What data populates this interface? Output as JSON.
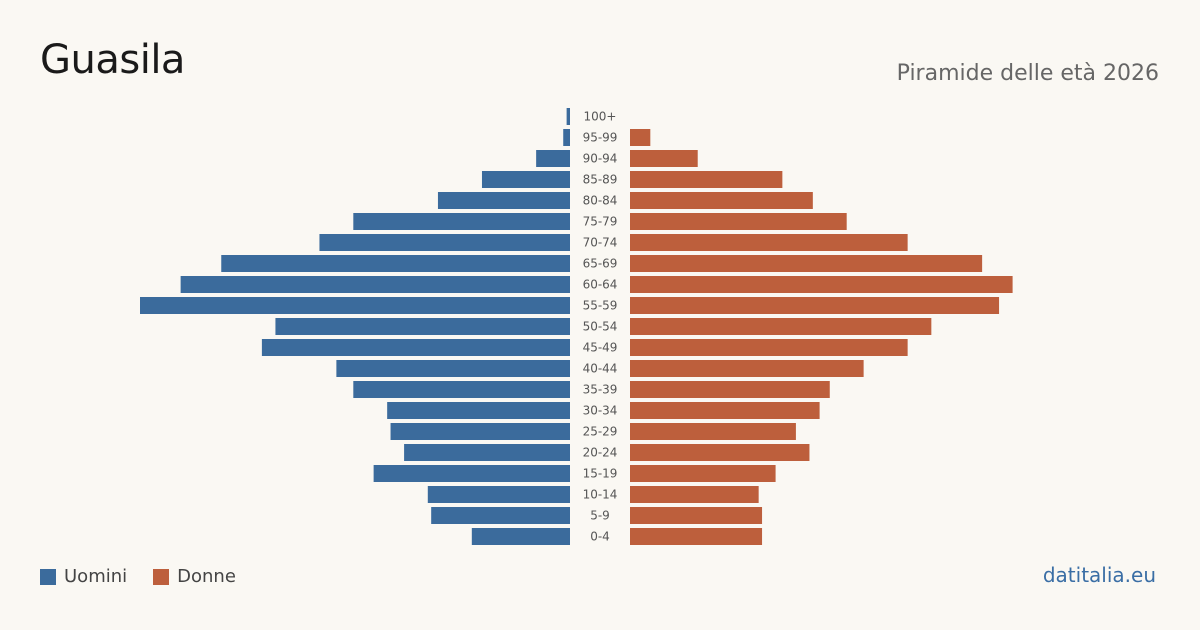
{
  "header": {
    "title": "Guasila",
    "subtitle": "Piramide delle età 2026"
  },
  "legend": {
    "men_label": "Uomini",
    "women_label": "Donne"
  },
  "footer": {
    "brand": "datitalia.eu"
  },
  "colors": {
    "men": "#3b6b9c",
    "women": "#bd5f3c",
    "age_label": "#555555"
  },
  "chart_data": {
    "type": "bar",
    "orientation": "horizontal-pyramid",
    "categories": [
      "100+",
      "95-99",
      "90-94",
      "85-89",
      "80-84",
      "75-79",
      "70-74",
      "65-69",
      "60-64",
      "55-59",
      "50-54",
      "45-49",
      "40-44",
      "35-39",
      "30-34",
      "25-29",
      "20-24",
      "15-19",
      "10-14",
      "5-9",
      "0-4"
    ],
    "series": [
      {
        "name": "Uomini",
        "values": [
          1,
          2,
          10,
          26,
          39,
          64,
          74,
          103,
          115,
          127,
          87,
          91,
          69,
          64,
          54,
          53,
          49,
          58,
          42,
          41,
          29
        ]
      },
      {
        "name": "Donne",
        "values": [
          0,
          6,
          20,
          45,
          54,
          64,
          82,
          104,
          113,
          109,
          89,
          82,
          69,
          59,
          56,
          49,
          53,
          43,
          38,
          39,
          39
        ]
      }
    ],
    "xlim": [
      0,
      127
    ],
    "grid": false,
    "legend_position": "bottom-left"
  }
}
